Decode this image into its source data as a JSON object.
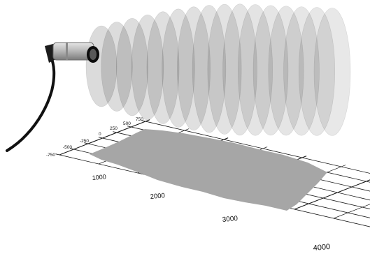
{
  "figure": {
    "description_visible_text_only": true
  },
  "axes": {
    "width_axis": {
      "ticks": [
        "-750",
        "-500",
        "-250",
        "0",
        "250",
        "500",
        "750"
      ],
      "tick_values": [
        -750,
        -500,
        -250,
        0,
        250,
        500,
        750
      ]
    },
    "distance_axis": {
      "ticks": [
        "1000",
        "2000",
        "3000",
        "4000"
      ],
      "tick_values": [
        1000,
        2000,
        3000,
        4000
      ]
    }
  },
  "colors": {
    "beam": "#000000",
    "footprint": "#a6a6a6",
    "grid": "#1a1a1a",
    "sensor_body": "#c8c8c8",
    "cable": "#111111"
  },
  "icons": {
    "sensor": "cylindrical-sensor-icon",
    "cable": "cable-icon"
  }
}
